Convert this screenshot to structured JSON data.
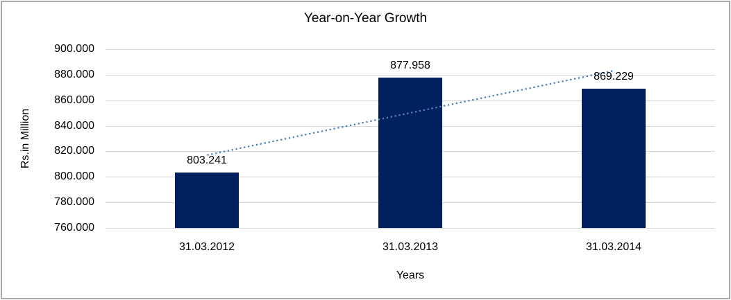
{
  "chart_data": {
    "type": "bar",
    "title": "Year-on-Year Growth",
    "xlabel": "Years",
    "ylabel": "Rs.in Million",
    "categories": [
      "31.03.2012",
      "31.03.2013",
      "31.03.2014"
    ],
    "values": [
      803.241,
      877.958,
      869.229
    ],
    "data_labels": [
      "803.241",
      "877.958",
      "869.229"
    ],
    "ylim": [
      760,
      900
    ],
    "ytick_step": 20,
    "ytick_labels": [
      "760.000",
      "780.000",
      "800.000",
      "820.000",
      "840.000",
      "860.000",
      "880.000",
      "900.000"
    ],
    "grid": true,
    "legend": "none",
    "trendline": {
      "type": "linear",
      "style": "dotted",
      "start_value": 817.1,
      "end_value": 883.1
    },
    "colors": {
      "bar": "#002060",
      "trendline": "#4F81BD",
      "gridline": "#D6D6D6",
      "text": "#000000",
      "frame": "#A8A8A8",
      "background": "#FFFFFF"
    }
  }
}
